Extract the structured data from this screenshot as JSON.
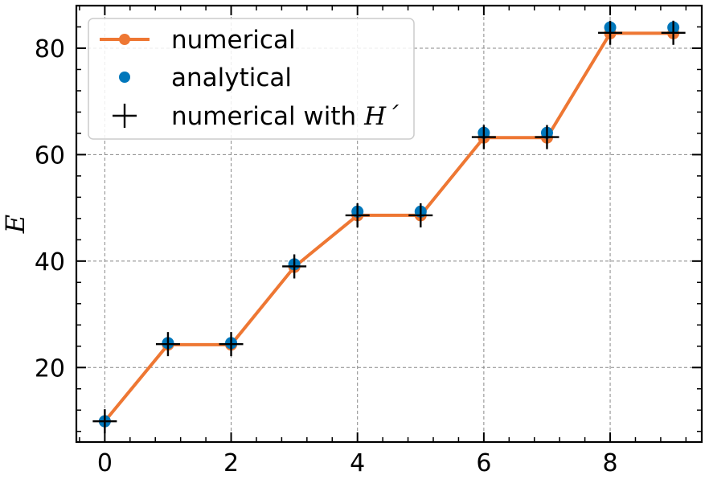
{
  "chart_data": {
    "type": "line",
    "title": "",
    "xlabel": "",
    "ylabel": "E",
    "xlim": [
      -0.45,
      9.45
    ],
    "ylim": [
      6,
      88
    ],
    "x_ticks": [
      0,
      2,
      4,
      6,
      8
    ],
    "y_ticks": [
      20,
      40,
      60,
      80
    ],
    "grid": true,
    "legend_position": "upper-left",
    "x": [
      0,
      1,
      2,
      3,
      4,
      5,
      6,
      7,
      8,
      9
    ],
    "series": [
      {
        "name": "numerical",
        "style": "line-with-markers",
        "color": "#ee7733",
        "values": [
          9.9,
          24.3,
          24.3,
          38.9,
          48.6,
          48.6,
          63.2,
          63.2,
          82.8,
          82.8
        ]
      },
      {
        "name": "analytical",
        "style": "markers",
        "color": "#0077bb",
        "values": [
          9.9,
          24.6,
          24.6,
          39.4,
          49.3,
          49.3,
          64.1,
          64.1,
          83.9,
          83.9
        ]
      },
      {
        "name": "numerical with H´",
        "name_prefix": "numerical with ",
        "name_math": "H´",
        "style": "plus-markers",
        "color": "#000000",
        "values": [
          9.9,
          24.4,
          24.4,
          39.0,
          48.6,
          48.6,
          63.3,
          63.3,
          82.9,
          82.9
        ]
      }
    ]
  }
}
